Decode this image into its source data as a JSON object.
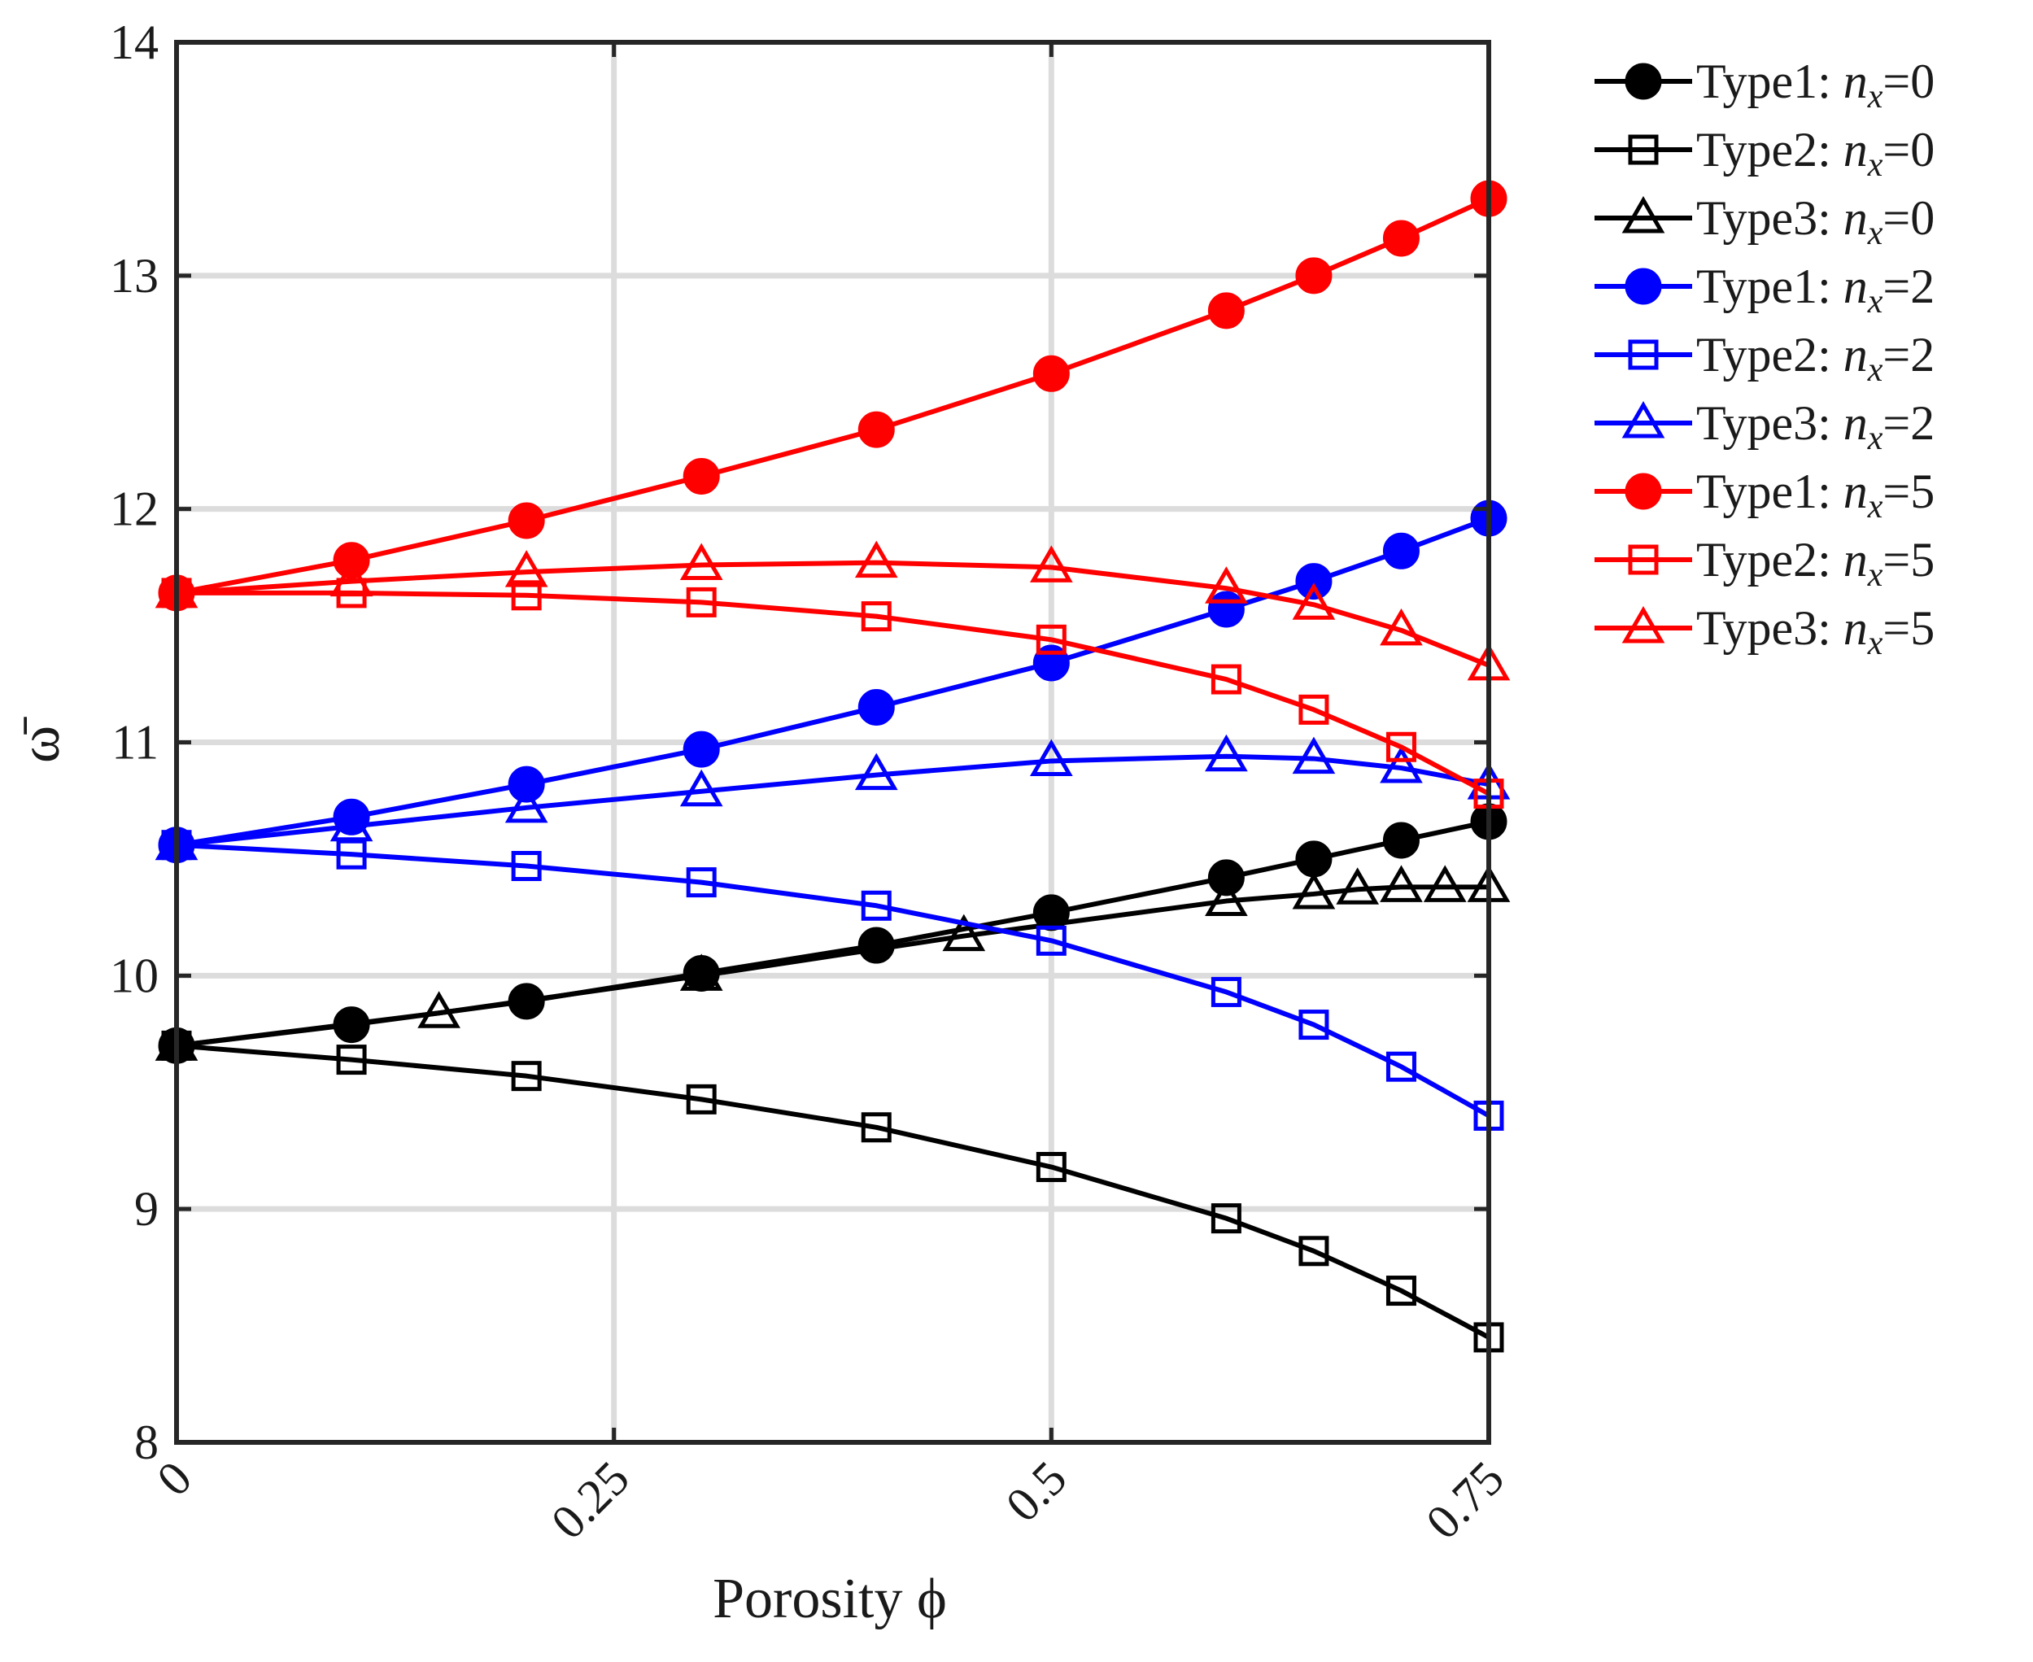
{
  "chart_data": {
    "type": "line",
    "xlabel": "Porosity ϕ",
    "ylabel": "ω̄",
    "xlim": [
      0,
      0.75
    ],
    "ylim": [
      8,
      14
    ],
    "xticks": [
      0,
      0.25,
      0.5,
      0.75
    ],
    "xtick_labels": [
      "0",
      "0.25",
      "0.5",
      "0.75"
    ],
    "yticks": [
      8,
      9,
      10,
      11,
      12,
      13,
      14
    ],
    "ytick_labels": [
      "8",
      "9",
      "10",
      "11",
      "12",
      "13",
      "14"
    ],
    "grid": true,
    "legend_position": "outside-right",
    "series": [
      {
        "name": "Type1: n_x=0",
        "legend_type": "Type1:",
        "legend_var": "n",
        "legend_sub": "x",
        "legend_val": "=0",
        "color": "#000000",
        "marker": "circle",
        "filled": true,
        "x": [
          0,
          0.1,
          0.2,
          0.3,
          0.4,
          0.5,
          0.6,
          0.65,
          0.7,
          0.75
        ],
        "y": [
          9.7,
          9.79,
          9.89,
          10.01,
          10.13,
          10.27,
          10.42,
          10.5,
          10.58,
          10.66
        ]
      },
      {
        "name": "Type2: n_x=0",
        "legend_type": "Type2:",
        "legend_var": "n",
        "legend_sub": "x",
        "legend_val": "=0",
        "color": "#000000",
        "marker": "square",
        "filled": false,
        "x": [
          0,
          0.1,
          0.2,
          0.3,
          0.4,
          0.5,
          0.6,
          0.65,
          0.7,
          0.75
        ],
        "y": [
          9.7,
          9.64,
          9.57,
          9.47,
          9.35,
          9.18,
          8.96,
          8.82,
          8.65,
          8.45
        ]
      },
      {
        "name": "Type3: n_x=0",
        "legend_type": "Type3:",
        "legend_var": "n",
        "legend_sub": "x",
        "legend_val": "=0",
        "color": "#000000",
        "marker": "triangle",
        "filled": false,
        "x": [
          0,
          0.15,
          0.3,
          0.45,
          0.6,
          0.65,
          0.675,
          0.7,
          0.725,
          0.75
        ],
        "y": [
          9.7,
          9.84,
          10.0,
          10.17,
          10.32,
          10.35,
          10.37,
          10.38,
          10.38,
          10.38
        ]
      },
      {
        "name": "Type1: n_x=2",
        "legend_type": "Type1:",
        "legend_var": "n",
        "legend_sub": "x",
        "legend_val": "=2",
        "color": "#0000ff",
        "marker": "circle",
        "filled": true,
        "x": [
          0,
          0.1,
          0.2,
          0.3,
          0.4,
          0.5,
          0.6,
          0.65,
          0.7,
          0.75
        ],
        "y": [
          10.56,
          10.68,
          10.82,
          10.97,
          11.15,
          11.34,
          11.57,
          11.69,
          11.82,
          11.96
        ]
      },
      {
        "name": "Type2: n_x=2",
        "legend_type": "Type2:",
        "legend_var": "n",
        "legend_sub": "x",
        "legend_val": "=2",
        "color": "#0000ff",
        "marker": "square",
        "filled": false,
        "x": [
          0,
          0.1,
          0.2,
          0.3,
          0.4,
          0.5,
          0.6,
          0.65,
          0.7,
          0.75
        ],
        "y": [
          10.56,
          10.52,
          10.47,
          10.4,
          10.3,
          10.15,
          9.93,
          9.79,
          9.61,
          9.4
        ]
      },
      {
        "name": "Type3: n_x=2",
        "legend_type": "Type3:",
        "legend_var": "n",
        "legend_sub": "x",
        "legend_val": "=2",
        "color": "#0000ff",
        "marker": "triangle",
        "filled": false,
        "x": [
          0,
          0.1,
          0.2,
          0.3,
          0.4,
          0.5,
          0.6,
          0.65,
          0.7,
          0.75
        ],
        "y": [
          10.56,
          10.64,
          10.72,
          10.79,
          10.86,
          10.92,
          10.94,
          10.93,
          10.89,
          10.82
        ]
      },
      {
        "name": "Type1: n_x=5",
        "legend_type": "Type1:",
        "legend_var": "n",
        "legend_sub": "x",
        "legend_val": "=5",
        "color": "#ff0000",
        "marker": "circle",
        "filled": true,
        "x": [
          0,
          0.1,
          0.2,
          0.3,
          0.4,
          0.5,
          0.6,
          0.65,
          0.7,
          0.75
        ],
        "y": [
          11.64,
          11.78,
          11.95,
          12.14,
          12.34,
          12.58,
          12.85,
          13.0,
          13.16,
          13.33
        ]
      },
      {
        "name": "Type2: n_x=5",
        "legend_type": "Type2:",
        "legend_var": "n",
        "legend_sub": "x",
        "legend_val": "=5",
        "color": "#ff0000",
        "marker": "square",
        "filled": false,
        "x": [
          0,
          0.1,
          0.2,
          0.3,
          0.4,
          0.5,
          0.6,
          0.65,
          0.7,
          0.75
        ],
        "y": [
          11.64,
          11.64,
          11.63,
          11.6,
          11.54,
          11.44,
          11.27,
          11.14,
          10.98,
          10.78
        ]
      },
      {
        "name": "Type3: n_x=5",
        "legend_type": "Type3:",
        "legend_var": "n",
        "legend_sub": "x",
        "legend_val": "=5",
        "color": "#ff0000",
        "marker": "triangle",
        "filled": false,
        "x": [
          0,
          0.1,
          0.2,
          0.3,
          0.4,
          0.5,
          0.6,
          0.65,
          0.7,
          0.75
        ],
        "y": [
          11.64,
          11.69,
          11.73,
          11.76,
          11.77,
          11.75,
          11.66,
          11.59,
          11.48,
          11.33
        ]
      }
    ]
  }
}
